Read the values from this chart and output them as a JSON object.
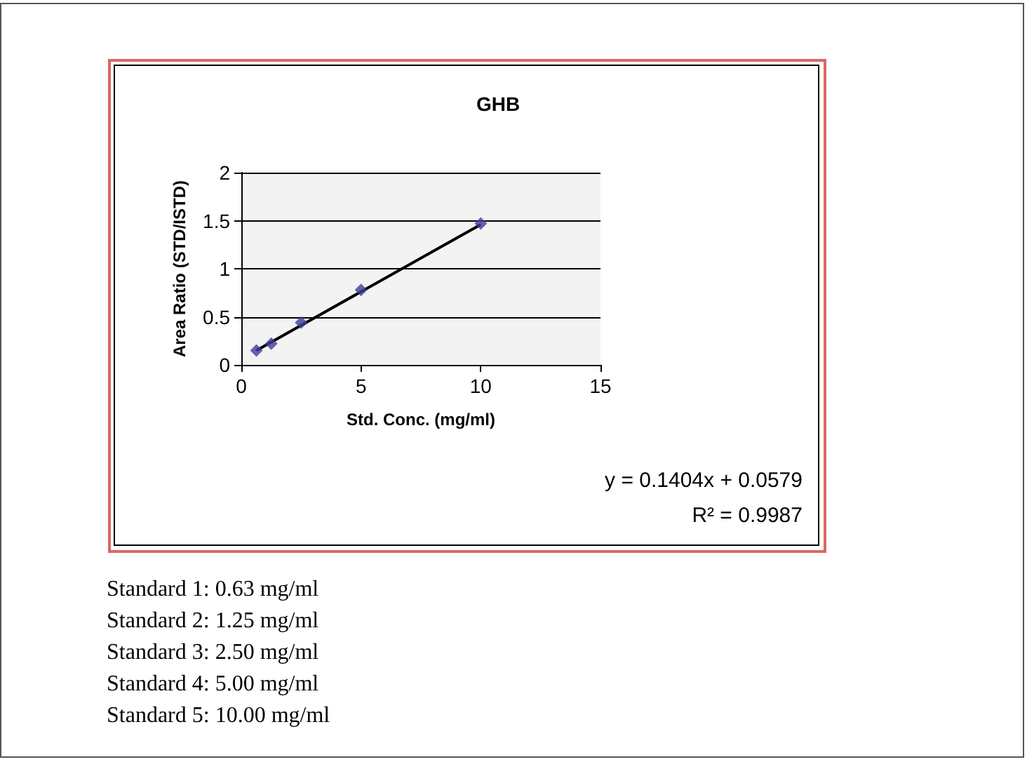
{
  "chart_data": {
    "type": "scatter",
    "title": "GHB",
    "xlabel": "Std. Conc. (mg/ml)",
    "ylabel": "Area Ratio (STD/ISTD)",
    "xlim": [
      0,
      15
    ],
    "xticks": [
      0,
      5,
      10,
      15
    ],
    "ylim": [
      0,
      2
    ],
    "yticks": [
      0,
      0.5,
      1,
      1.5,
      2
    ],
    "grid": "y",
    "series": [
      {
        "color": "#3d3d99",
        "marker": "diamond",
        "x": [
          0.63,
          1.25,
          2.5,
          5,
          10
        ],
        "values": [
          0.15,
          0.22,
          0.44,
          0.78,
          1.47
        ]
      },
      {
        "type": "line",
        "color": "#000000",
        "marker": "none",
        "line_style": "solid",
        "x": [
          0.63,
          10
        ],
        "values": [
          0.15,
          1.46
        ]
      }
    ],
    "annotations": [
      "y = 0.1404x + 0.0579",
      "R² = 0.9987",
      "Standard 1: 0.63 mg/ml",
      "Standard 2: 1.25 mg/ml",
      "Standard 3: 2.50 mg/ml",
      "Standard 4: 5.00 mg/ml",
      "Standard 5: 10.00 mg/ml"
    ]
  }
}
